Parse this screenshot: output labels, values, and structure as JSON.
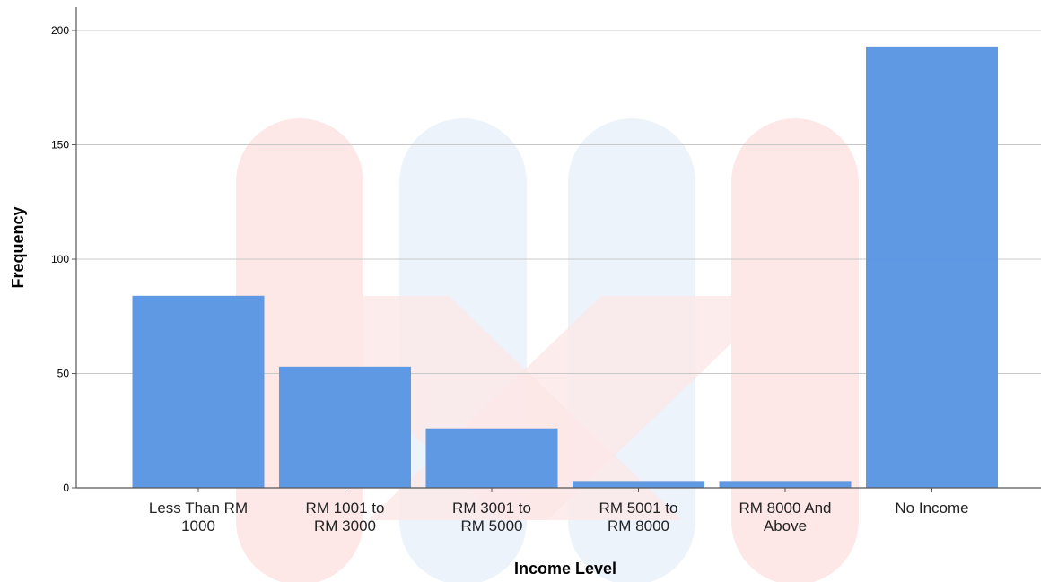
{
  "chart_data": {
    "type": "bar",
    "categories": [
      [
        "Less Than RM",
        "1000"
      ],
      [
        "RM 1001 to",
        "RM 3000"
      ],
      [
        "RM 3001 to",
        "RM 5000"
      ],
      [
        "RM 5001 to",
        "RM 8000"
      ],
      [
        "RM 8000 And",
        "Above"
      ],
      [
        "No Income"
      ]
    ],
    "values": [
      84,
      53,
      26,
      3,
      3,
      193
    ],
    "xlabel": "Income Level",
    "ylabel": "Frequency",
    "ylim": [
      0,
      200
    ],
    "yticks": [
      "0",
      "50",
      "100",
      "150",
      "200"
    ],
    "grid": "horizontal",
    "colors": {
      "bar": "#5a96e3",
      "gridline": "#c8c8c8",
      "axis": "#555555",
      "watermark_red": "#fde7e7",
      "watermark_blue": "#ecf3fb"
    }
  }
}
